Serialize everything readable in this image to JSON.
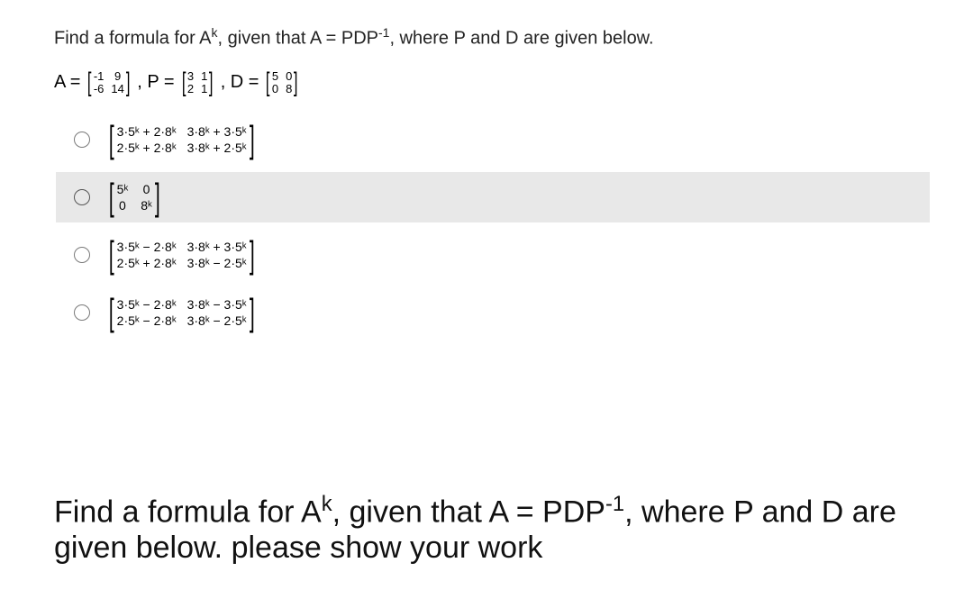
{
  "question": {
    "pre": "Find a formula for A",
    "exp": "k",
    "mid": ", given that A = PDP",
    "exp2": "-1",
    "post": ", where P and D are given below."
  },
  "eq": {
    "A": "A =",
    "Am": [
      "-1",
      "9",
      "-6",
      "14"
    ],
    "c1": ", P =",
    "Pm": [
      "3",
      "1",
      "2",
      "1"
    ],
    "c2": ", D =",
    "Dm": [
      "5",
      "0",
      "0",
      "8"
    ]
  },
  "opts": [
    {
      "cells": [
        "3·5ᵏ + 2·8ᵏ",
        "3·8ᵏ + 3·5ᵏ",
        "2·5ᵏ + 2·8ᵏ",
        "3·8ᵏ + 2·5ᵏ"
      ],
      "sel": false
    },
    {
      "cells": [
        "5ᵏ",
        "0",
        "0",
        "8ᵏ"
      ],
      "sel": true
    },
    {
      "cells": [
        "3·5ᵏ − 2·8ᵏ",
        "3·8ᵏ + 3·5ᵏ",
        "2·5ᵏ + 2·8ᵏ",
        "3·8ᵏ − 2·5ᵏ"
      ],
      "sel": false
    },
    {
      "cells": [
        "3·5ᵏ − 2·8ᵏ",
        "3·8ᵏ − 3·5ᵏ",
        "2·5ᵏ − 2·8ᵏ",
        "3·8ᵏ − 2·5ᵏ"
      ],
      "sel": false
    }
  ],
  "big": {
    "pre": "Find a formula for A",
    "exp": "k",
    "mid": ", given that A = PDP",
    "exp2": "-1",
    "post": ", where P and D are given below. please show your work"
  }
}
